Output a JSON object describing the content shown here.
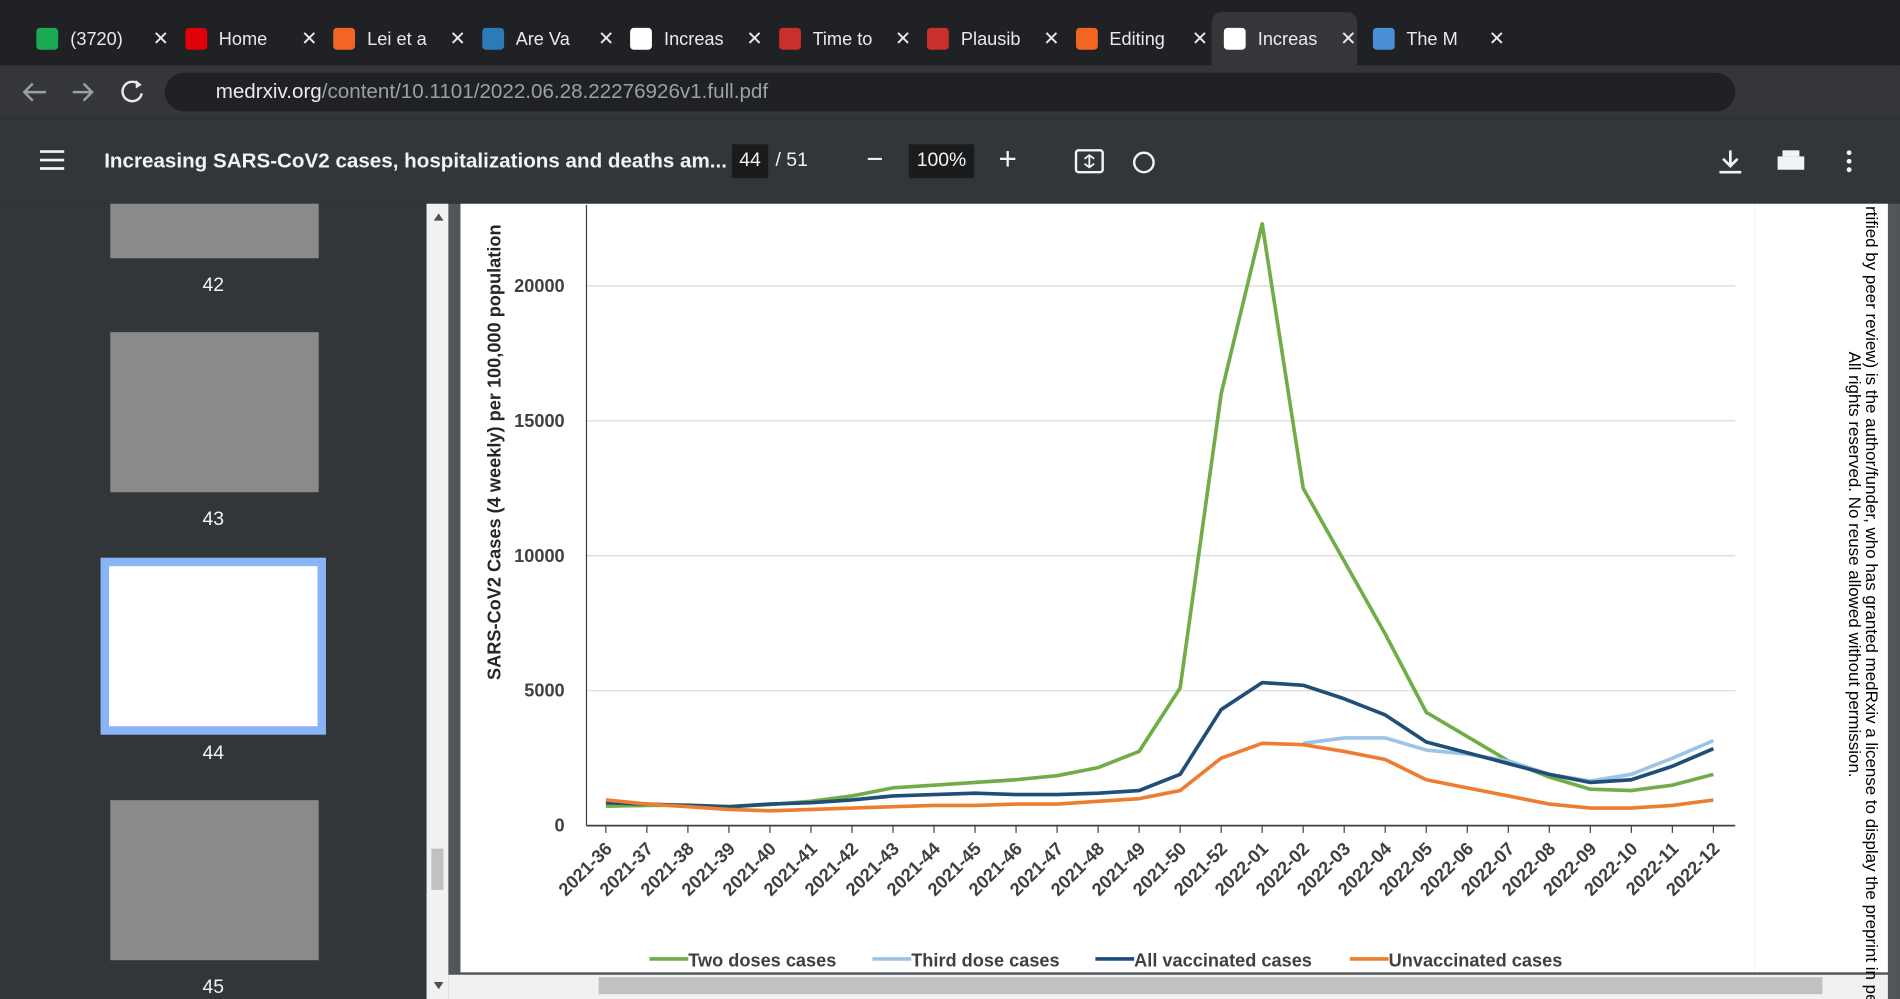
{
  "browser": {
    "tabs": [
      "(3720)",
      "Home",
      "Lei et a",
      "Are Va",
      "Increas",
      "Time to",
      "Plausib",
      "Editing",
      "Increas",
      "The M"
    ],
    "url_host": "medrxiv.org",
    "url_path": "/content/10.1101/2022.06.28.22276926v1.full.pdf"
  },
  "pdf_toolbar": {
    "title": "Increasing SARS-CoV2 cases, hospitalizations and deaths am...",
    "page": "44",
    "pages": "/ 51",
    "zoom": "100%"
  },
  "thumbnails": [
    "42",
    "43",
    "44",
    "45"
  ],
  "side_notice": [
    "rtified by peer review) is the author/funder, who has granted medRxiv a license to display the preprint in perp",
    "All rights reserved. No reuse allowed without permission."
  ],
  "chart_data": {
    "type": "line",
    "y_label": "SARS-CoV2 Cases (4 weekly) per 100,000 population",
    "categories": [
      "2021-36",
      "2021-37",
      "2021-38",
      "2021-39",
      "2021-40",
      "2021-41",
      "2021-42",
      "2021-43",
      "2021-44",
      "2021-45",
      "2021-46",
      "2021-47",
      "2021-48",
      "2021-49",
      "2021-50",
      "2021-52",
      "2022-01",
      "2022-02",
      "2022-03",
      "2022-04",
      "2022-05",
      "2022-06",
      "2022-07",
      "2022-08",
      "2022-09",
      "2022-10",
      "2022-11",
      "2022-12"
    ],
    "ylim": [
      0,
      23000
    ],
    "yticks": [
      0,
      5000,
      10000,
      15000,
      20000
    ],
    "grid": true,
    "series": [
      {
        "name": "Two doses cases",
        "color": "#70ad47",
        "values": [
          720,
          750,
          760,
          700,
          780,
          900,
          1100,
          1400,
          1500,
          1600,
          1700,
          1850,
          2150,
          2750,
          5100,
          16000,
          22300,
          12500,
          9800,
          7100,
          4200,
          3300,
          2400,
          1800,
          1350,
          1300,
          1500,
          1900
        ]
      },
      {
        "name": "Third dose cases",
        "color": "#9dc3e6",
        "values": [
          null,
          null,
          null,
          null,
          null,
          null,
          null,
          null,
          null,
          null,
          null,
          null,
          null,
          null,
          null,
          null,
          null,
          3050,
          3250,
          3250,
          2800,
          2650,
          2400,
          1900,
          1650,
          1900,
          2500,
          3150
        ]
      },
      {
        "name": "All vaccinated cases",
        "color": "#1f4e79",
        "values": [
          850,
          800,
          750,
          700,
          800,
          850,
          950,
          1100,
          1150,
          1200,
          1150,
          1150,
          1200,
          1300,
          1900,
          4300,
          5300,
          5200,
          4700,
          4100,
          3100,
          2700,
          2300,
          1900,
          1600,
          1700,
          2200,
          2850
        ]
      },
      {
        "name": "Unvaccinated cases",
        "color": "#ed7d31",
        "values": [
          950,
          800,
          700,
          600,
          550,
          600,
          650,
          700,
          750,
          750,
          800,
          800,
          900,
          1000,
          1300,
          2500,
          3050,
          3000,
          2750,
          2450,
          1700,
          1400,
          1100,
          800,
          650,
          650,
          750,
          950
        ]
      }
    ]
  }
}
